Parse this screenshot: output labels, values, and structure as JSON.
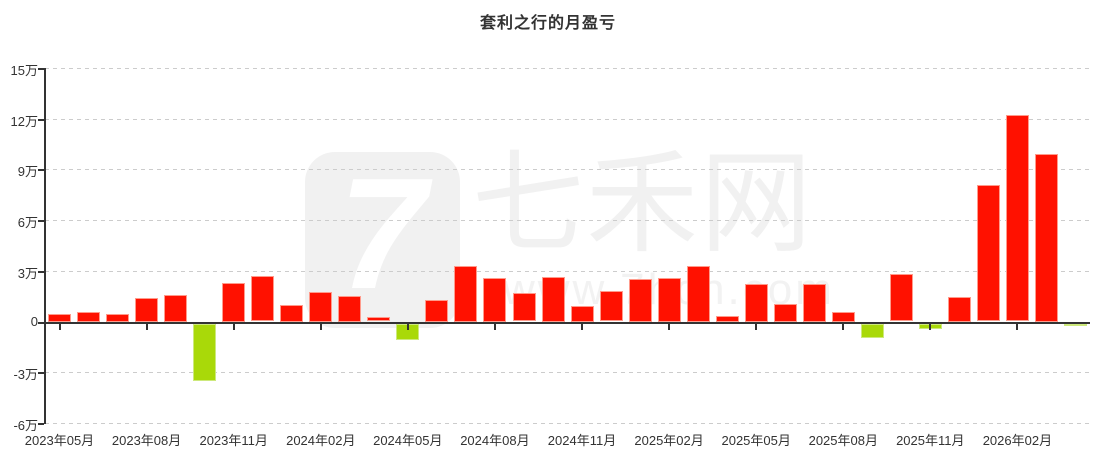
{
  "page": {
    "title": "套利之行的月盈亏"
  },
  "watermark": {
    "logo_glyph": "7",
    "brand": "七禾网",
    "url": "www.7hcn.com"
  },
  "colors": {
    "positive_bar": "#ff1100",
    "negative_bar": "#a9d909",
    "axis": "#333333",
    "grid": "#cccccc",
    "title_text": "#333333",
    "watermark": "#f1f1f1",
    "background": "#ffffff"
  },
  "chart_data": {
    "type": "bar",
    "title": "套利之行的月盈亏",
    "value_unit": "万",
    "categories": [
      "2023年05月",
      "2023年06月",
      "2023年07月",
      "2023年08月",
      "2023年09月",
      "2023年10月",
      "2023年11月",
      "2023年12月",
      "2024年01月",
      "2024年02月",
      "2024年03月",
      "2024年04月",
      "2024年05月",
      "2024年06月",
      "2024年07月",
      "2024年08月",
      "2024年09月",
      "2024年10月",
      "2024年11月",
      "2024年12月",
      "2025年01月",
      "2025年02月",
      "2025年03月",
      "2025年04月",
      "2025年05月",
      "2025年06月",
      "2025年07月",
      "2025年08月",
      "2025年09月",
      "2025年10月",
      "2025年11月",
      "2025年12月",
      "2026年01月",
      "2026年02月",
      "2026年03月",
      "2026年04月"
    ],
    "values": [
      0.45,
      0.55,
      0.45,
      1.4,
      1.6,
      -3.4,
      2.3,
      2.7,
      1.0,
      1.75,
      1.5,
      0.25,
      -0.95,
      1.3,
      3.3,
      2.6,
      1.7,
      2.65,
      0.9,
      1.8,
      2.5,
      2.6,
      3.3,
      0.35,
      2.25,
      1.05,
      2.25,
      0.55,
      -0.85,
      2.8,
      -0.35,
      1.45,
      8.1,
      12.2,
      9.9,
      -0.05
    ],
    "x_tick_labels": [
      "2023年05月",
      "2023年08月",
      "2023年11月",
      "2024年02月",
      "2024年05月",
      "2024年08月",
      "2024年11月",
      "2025年02月",
      "2025年05月",
      "2025年08月",
      "2025年11月",
      "2026年02月"
    ],
    "x_label_every_n_months": 3,
    "y_tick_labels": [
      "15万",
      "12万",
      "9万",
      "6万",
      "3万",
      "0",
      "-3万",
      "-6万"
    ],
    "y_tick_values": [
      15,
      12,
      9,
      6,
      3,
      0,
      -3,
      -6
    ],
    "ylim": [
      -6,
      15
    ],
    "grid": "horizontal-dashed",
    "legend": "none",
    "bar_color_rule": "red = profit (positive), yellow-green = loss (negative)"
  }
}
